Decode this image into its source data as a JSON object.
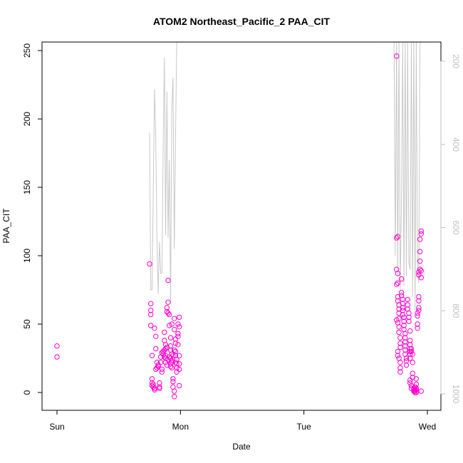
{
  "chart_data": {
    "type": "scatter",
    "title": "ATOM2 Northeast_Pacific_2 PAA_CIT",
    "xlabel": "Date",
    "ylabel": "PAA_CIT",
    "xlim": [
      -0.05,
      3.12
    ],
    "ylim": [
      -12,
      256
    ],
    "x_unit": "days from Sunday 00:00",
    "xticks": [
      {
        "value": 0,
        "label": "Sun"
      },
      {
        "value": 1,
        "label": "Mon"
      },
      {
        "value": 2,
        "label": "Tue"
      },
      {
        "value": 3,
        "label": "Wed"
      }
    ],
    "yticks": [
      0,
      50,
      100,
      150,
      200,
      250
    ],
    "right_axis": {
      "label": "",
      "reversed": true,
      "range": [
        1020,
        170
      ],
      "ticks": [
        200,
        400,
        600,
        800,
        1000
      ],
      "color": "#c0c0c0"
    },
    "colors": {
      "points": "#ff00cc",
      "profile_line": "#c8c8c8",
      "axis": "#000000",
      "right_axis": "#c0c0c0"
    },
    "series": [
      {
        "values": [
          [
            0.0,
            34
          ],
          [
            0.0,
            26
          ],
          [
            0.75,
            94
          ],
          [
            0.76,
            65
          ],
          [
            0.76,
            60
          ],
          [
            0.76,
            57
          ],
          [
            0.76,
            49
          ],
          [
            0.77,
            27
          ],
          [
            0.77,
            10
          ],
          [
            0.77,
            7
          ],
          [
            0.77,
            5
          ],
          [
            0.78,
            4
          ],
          [
            0.78,
            6
          ],
          [
            0.79,
            3
          ],
          [
            0.79,
            2
          ],
          [
            0.79,
            47
          ],
          [
            0.8,
            41
          ],
          [
            0.8,
            32
          ],
          [
            0.81,
            22
          ],
          [
            0.81,
            18
          ],
          [
            0.8,
            17
          ],
          [
            0.82,
            20
          ],
          [
            0.82,
            19
          ],
          [
            0.83,
            7
          ],
          [
            0.83,
            4
          ],
          [
            0.83,
            3
          ],
          [
            0.84,
            26
          ],
          [
            0.84,
            22
          ],
          [
            0.85,
            17
          ],
          [
            0.85,
            15
          ],
          [
            0.86,
            30
          ],
          [
            0.86,
            28
          ],
          [
            0.87,
            44
          ],
          [
            0.87,
            38
          ],
          [
            0.87,
            31
          ],
          [
            0.88,
            32
          ],
          [
            0.88,
            27
          ],
          [
            0.88,
            25
          ],
          [
            0.89,
            62
          ],
          [
            0.89,
            59
          ],
          [
            0.9,
            82
          ],
          [
            0.9,
            66
          ],
          [
            0.9,
            58
          ],
          [
            0.91,
            57
          ],
          [
            0.91,
            49
          ],
          [
            0.92,
            40
          ],
          [
            0.92,
            34
          ],
          [
            0.92,
            31
          ],
          [
            0.92,
            25
          ],
          [
            0.92,
            21
          ],
          [
            0.93,
            50
          ],
          [
            0.93,
            28
          ],
          [
            0.93,
            22
          ],
          [
            0.93,
            18
          ],
          [
            0.94,
            10
          ],
          [
            0.94,
            8
          ],
          [
            0.94,
            4
          ],
          [
            0.95,
            1
          ],
          [
            0.95,
            -3
          ],
          [
            0.95,
            54
          ],
          [
            0.95,
            46
          ],
          [
            0.96,
            39
          ],
          [
            0.96,
            36
          ],
          [
            0.96,
            30
          ],
          [
            0.96,
            27
          ],
          [
            0.97,
            24
          ],
          [
            0.97,
            21
          ],
          [
            0.97,
            18
          ],
          [
            0.97,
            15
          ],
          [
            0.98,
            50
          ],
          [
            0.98,
            43
          ],
          [
            0.98,
            41
          ],
          [
            0.98,
            35
          ],
          [
            0.99,
            55
          ],
          [
            0.99,
            48
          ],
          [
            0.99,
            27
          ],
          [
            0.99,
            21
          ],
          [
            0.99,
            17
          ],
          [
            0.99,
            5
          ],
          [
            0.86,
            30
          ],
          [
            0.85,
            29
          ],
          [
            0.87,
            26
          ],
          [
            0.88,
            22
          ],
          [
            0.89,
            20
          ],
          [
            0.9,
            24
          ],
          [
            0.91,
            26
          ],
          [
            0.89,
            33
          ],
          [
            0.88,
            35
          ],
          [
            0.92,
            19
          ],
          [
            0.93,
            23
          ],
          [
            0.94,
            27
          ],
          [
            0.95,
            31
          ],
          [
            0.96,
            22
          ],
          [
            2.75,
            246
          ],
          [
            2.75,
            113
          ],
          [
            2.76,
            114
          ],
          [
            2.75,
            90
          ],
          [
            2.76,
            87
          ],
          [
            2.76,
            80
          ],
          [
            2.75,
            79
          ],
          [
            2.76,
            70
          ],
          [
            2.76,
            67
          ],
          [
            2.77,
            64
          ],
          [
            2.77,
            61
          ],
          [
            2.77,
            58
          ],
          [
            2.77,
            54
          ],
          [
            2.75,
            53
          ],
          [
            2.76,
            51
          ],
          [
            2.77,
            48
          ],
          [
            2.77,
            44
          ],
          [
            2.78,
            40
          ],
          [
            2.78,
            36
          ],
          [
            2.78,
            33
          ],
          [
            2.76,
            30
          ],
          [
            2.76,
            27
          ],
          [
            2.77,
            25
          ],
          [
            2.78,
            22
          ],
          [
            2.78,
            18
          ],
          [
            2.78,
            15
          ],
          [
            2.79,
            83
          ],
          [
            2.79,
            73
          ],
          [
            2.79,
            71
          ],
          [
            2.8,
            68
          ],
          [
            2.8,
            65
          ],
          [
            2.8,
            62
          ],
          [
            2.8,
            60
          ],
          [
            2.8,
            57
          ],
          [
            2.81,
            55
          ],
          [
            2.81,
            52
          ],
          [
            2.81,
            49
          ],
          [
            2.81,
            46
          ],
          [
            2.82,
            43
          ],
          [
            2.82,
            40
          ],
          [
            2.82,
            37
          ],
          [
            2.82,
            34
          ],
          [
            2.82,
            31
          ],
          [
            2.82,
            28
          ],
          [
            2.83,
            25
          ],
          [
            2.83,
            23
          ],
          [
            2.83,
            20
          ],
          [
            2.84,
            68
          ],
          [
            2.84,
            64
          ],
          [
            2.84,
            61
          ],
          [
            2.85,
            58
          ],
          [
            2.85,
            55
          ],
          [
            2.85,
            52
          ],
          [
            2.86,
            45
          ],
          [
            2.86,
            38
          ],
          [
            2.86,
            35
          ],
          [
            2.86,
            32
          ],
          [
            2.86,
            30
          ],
          [
            2.86,
            28
          ],
          [
            2.86,
            25
          ],
          [
            2.86,
            9
          ],
          [
            2.86,
            7
          ],
          [
            2.87,
            5
          ],
          [
            2.87,
            3
          ],
          [
            2.87,
            32
          ],
          [
            2.87,
            30
          ],
          [
            2.88,
            28
          ],
          [
            2.88,
            22
          ],
          [
            2.88,
            14
          ],
          [
            2.88,
            11
          ],
          [
            2.89,
            3
          ],
          [
            2.89,
            2
          ],
          [
            2.89,
            1
          ],
          [
            2.9,
            1
          ],
          [
            2.9,
            2
          ],
          [
            2.9,
            4
          ],
          [
            2.91,
            6
          ],
          [
            2.91,
            10
          ],
          [
            2.91,
            3
          ],
          [
            2.91,
            2
          ],
          [
            2.92,
            50
          ],
          [
            2.92,
            47
          ],
          [
            2.92,
            56
          ],
          [
            2.92,
            58
          ],
          [
            2.93,
            60
          ],
          [
            2.93,
            62
          ],
          [
            2.93,
            70
          ],
          [
            2.93,
            67
          ],
          [
            2.93,
            88
          ],
          [
            2.93,
            86
          ],
          [
            2.94,
            90
          ],
          [
            2.94,
            96
          ],
          [
            2.94,
            103
          ],
          [
            2.94,
            112
          ],
          [
            2.95,
            118
          ],
          [
            2.95,
            116
          ],
          [
            2.95,
            89
          ],
          [
            2.95,
            84
          ],
          [
            2.95,
            1
          ],
          [
            2.91,
            0
          ],
          [
            2.9,
            0
          ]
        ]
      }
    ],
    "profile_line": [
      [
        0.75,
        190
      ],
      [
        0.76,
        75
      ],
      [
        0.77,
        75
      ],
      [
        0.79,
        222
      ],
      [
        0.8,
        185
      ],
      [
        0.81,
        110
      ],
      [
        0.82,
        72
      ],
      [
        0.83,
        110
      ],
      [
        0.84,
        87
      ],
      [
        0.85,
        87
      ],
      [
        0.86,
        180
      ],
      [
        0.87,
        245
      ],
      [
        0.88,
        115
      ],
      [
        0.89,
        220
      ],
      [
        0.9,
        113
      ],
      [
        0.91,
        170
      ],
      [
        0.92,
        65
      ],
      [
        0.93,
        210
      ],
      [
        0.94,
        230
      ],
      [
        0.95,
        105
      ],
      [
        0.96,
        185
      ],
      [
        0.97,
        256
      ],
      [
        2.73,
        256
      ],
      [
        2.74,
        100
      ],
      [
        2.75,
        256
      ],
      [
        2.76,
        85
      ],
      [
        2.77,
        256
      ],
      [
        2.78,
        75
      ],
      [
        2.79,
        140
      ],
      [
        2.8,
        256
      ],
      [
        2.81,
        78
      ],
      [
        2.82,
        256
      ],
      [
        2.83,
        85
      ],
      [
        2.84,
        256
      ],
      [
        2.85,
        95
      ],
      [
        2.86,
        90
      ],
      [
        2.87,
        256
      ],
      [
        2.88,
        70
      ],
      [
        2.89,
        256
      ],
      [
        2.9,
        60
      ],
      [
        2.91,
        256
      ],
      [
        2.92,
        90
      ],
      [
        2.93,
        80
      ],
      [
        2.94,
        256
      ],
      [
        2.95,
        256
      ]
    ]
  }
}
